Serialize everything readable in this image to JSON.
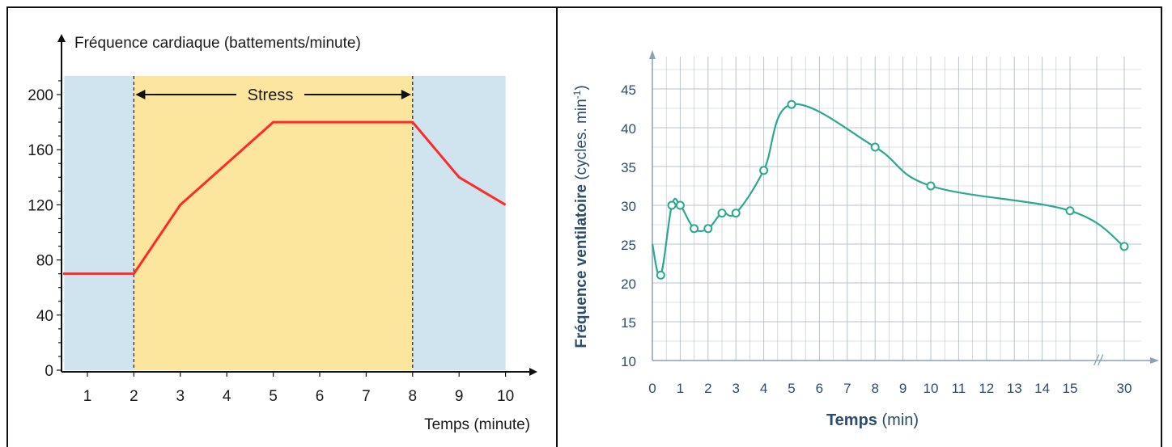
{
  "chart_data": [
    {
      "type": "line",
      "ylabel": "Fréquence cardiaque (battements/minute)",
      "xlabel": "Temps (minute)",
      "x_ticks": [
        1,
        2,
        3,
        4,
        5,
        6,
        7,
        8,
        9,
        10
      ],
      "y_ticks": [
        0,
        40,
        80,
        120,
        160,
        200
      ],
      "xlim": [
        0.5,
        10.5
      ],
      "ylim": [
        0,
        215
      ],
      "shaded_regions": [
        {
          "from": 0.5,
          "to": 2,
          "color": "#cfe4ee"
        },
        {
          "from": 2,
          "to": 8,
          "color": "#fce59c",
          "label": "Stress"
        },
        {
          "from": 8,
          "to": 10,
          "color": "#cfe4ee"
        }
      ],
      "stress_label": "Stress",
      "series": [
        {
          "color": "#ff2a2a",
          "x": [
            0.5,
            2,
            3,
            5,
            8,
            9,
            10
          ],
          "y": [
            70,
            70,
            120,
            180,
            180,
            140,
            120
          ]
        }
      ]
    },
    {
      "type": "line",
      "ylabel_bold": "Fréquence ventilatoire",
      "ylabel_light": "(cycles. min",
      "ylabel_sup": "-1",
      "ylabel_close": ")",
      "xlabel_bold": "Temps",
      "xlabel_light": "(min)",
      "x_ticks": [
        "0",
        "1",
        "2",
        "3",
        "4",
        "5",
        "6",
        "7",
        "8",
        "9",
        "10",
        "11",
        "12",
        "13",
        "14",
        "15",
        "30"
      ],
      "y_ticks": [
        10,
        15,
        20,
        25,
        30,
        35,
        40,
        45
      ],
      "ylim": [
        10,
        48
      ],
      "axis_break": "//",
      "grid": true,
      "series": [
        {
          "color": "#2aa891",
          "x": [
            0,
            0.3,
            0.7,
            1,
            1.5,
            2,
            2.5,
            3,
            4,
            5,
            8,
            10,
            15,
            30
          ],
          "y": [
            25,
            21,
            30,
            30,
            27,
            27,
            29,
            29,
            34.5,
            43,
            37.5,
            32.5,
            29.3,
            24.7
          ],
          "markers": [
            false,
            true,
            true,
            true,
            true,
            true,
            true,
            true,
            true,
            true,
            true,
            true,
            true,
            true
          ]
        }
      ]
    }
  ]
}
